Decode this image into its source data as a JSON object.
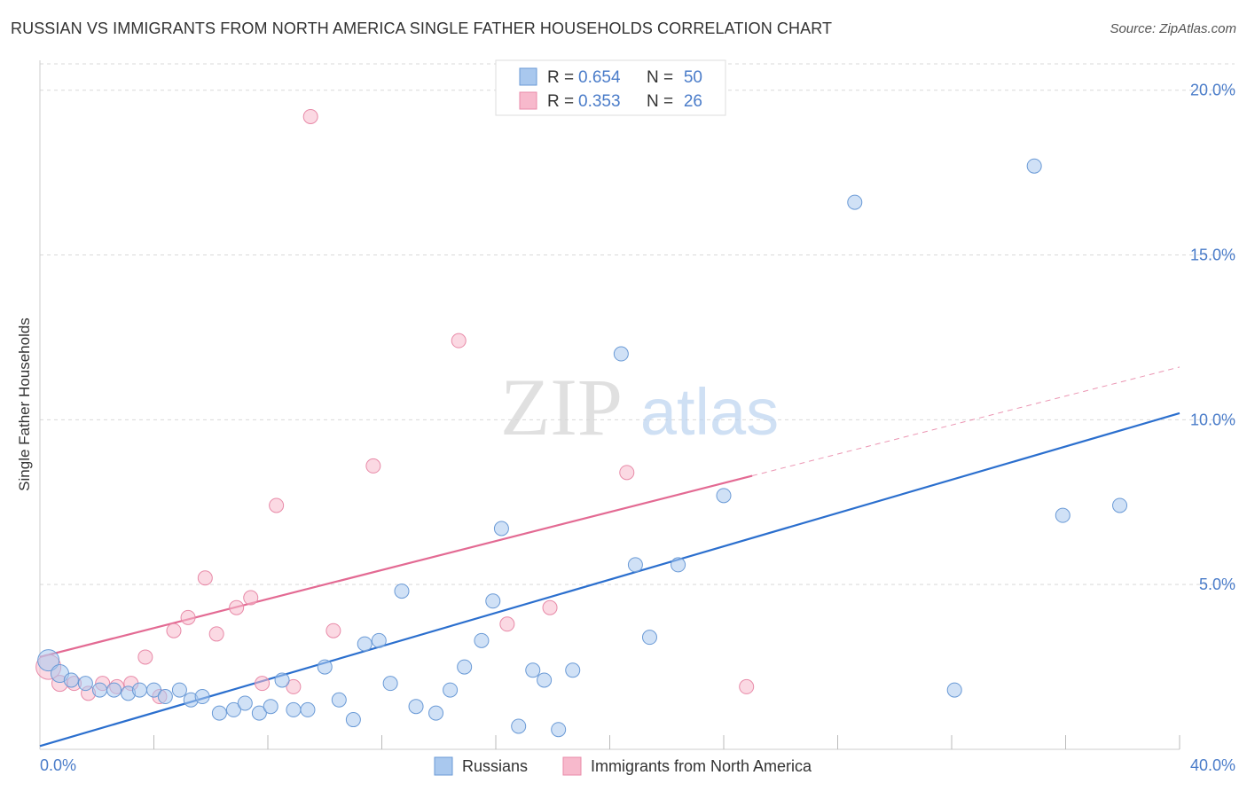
{
  "header": {
    "title": "RUSSIAN VS IMMIGRANTS FROM NORTH AMERICA SINGLE FATHER HOUSEHOLDS CORRELATION CHART",
    "source": "Source: ZipAtlas.com"
  },
  "watermark": {
    "zip": "ZIP",
    "atlas": "atlas"
  },
  "colors": {
    "blue_fill": "#a9c8ee",
    "blue_stroke": "#6a9ad6",
    "blue_line": "#2b6fce",
    "pink_fill": "#f7b9cc",
    "pink_stroke": "#e88aa8",
    "pink_line": "#e36a93",
    "tick_label": "#4a7cc9",
    "grid": "#d9d9d9"
  },
  "chart_data": {
    "type": "scatter",
    "title": "RUSSIAN VS IMMIGRANTS FROM NORTH AMERICA SINGLE FATHER HOUSEHOLDS CORRELATION CHART",
    "xlabel": "",
    "ylabel": "Single Father Households",
    "xlim": [
      0,
      40
    ],
    "ylim": [
      0,
      20.8
    ],
    "x_tick_labels": [
      "0.0%",
      "40.0%"
    ],
    "y_ticks": [
      5,
      10,
      15,
      20
    ],
    "y_tick_labels": [
      "5.0%",
      "10.0%",
      "15.0%",
      "20.0%"
    ],
    "x_minor_ticks": [
      4,
      8,
      12,
      16,
      20,
      24,
      28,
      32,
      36,
      40
    ],
    "grid": true,
    "legend_position": "top-center",
    "legend": [
      {
        "r_label": "R =",
        "r_value": "0.654",
        "n_label": "N =",
        "n_value": "50"
      },
      {
        "r_label": "R =",
        "r_value": "0.353",
        "n_label": "N =",
        "n_value": "26"
      }
    ],
    "series": [
      {
        "name": "Russians",
        "color": "#a9c8ee",
        "trend": {
          "x0": 0,
          "y0": 0.1,
          "x1": 40,
          "y1": 10.2
        },
        "points": [
          [
            0.3,
            2.7,
            12
          ],
          [
            0.7,
            2.3,
            10
          ],
          [
            1.1,
            2.1,
            8
          ],
          [
            1.6,
            2.0,
            8
          ],
          [
            2.1,
            1.8,
            8
          ],
          [
            2.6,
            1.8,
            8
          ],
          [
            3.1,
            1.7,
            8
          ],
          [
            3.5,
            1.8,
            8
          ],
          [
            4.0,
            1.8,
            8
          ],
          [
            4.4,
            1.6,
            8
          ],
          [
            4.9,
            1.8,
            8
          ],
          [
            5.3,
            1.5,
            8
          ],
          [
            5.7,
            1.6,
            8
          ],
          [
            6.3,
            1.1,
            8
          ],
          [
            6.8,
            1.2,
            8
          ],
          [
            7.2,
            1.4,
            8
          ],
          [
            7.7,
            1.1,
            8
          ],
          [
            8.1,
            1.3,
            8
          ],
          [
            8.5,
            2.1,
            8
          ],
          [
            8.9,
            1.2,
            8
          ],
          [
            9.4,
            1.2,
            8
          ],
          [
            10.0,
            2.5,
            8
          ],
          [
            10.5,
            1.5,
            8
          ],
          [
            11.0,
            0.9,
            8
          ],
          [
            11.4,
            3.2,
            8
          ],
          [
            11.9,
            3.3,
            8
          ],
          [
            12.3,
            2.0,
            8
          ],
          [
            12.7,
            4.8,
            8
          ],
          [
            13.2,
            1.3,
            8
          ],
          [
            13.9,
            1.1,
            8
          ],
          [
            14.4,
            1.8,
            8
          ],
          [
            14.9,
            2.5,
            8
          ],
          [
            15.5,
            3.3,
            8
          ],
          [
            15.9,
            4.5,
            8
          ],
          [
            16.2,
            6.7,
            8
          ],
          [
            16.8,
            0.7,
            8
          ],
          [
            17.3,
            2.4,
            8
          ],
          [
            17.7,
            2.1,
            8
          ],
          [
            18.2,
            0.6,
            8
          ],
          [
            18.7,
            2.4,
            8
          ],
          [
            20.4,
            12.0,
            8
          ],
          [
            20.9,
            5.6,
            8
          ],
          [
            21.4,
            3.4,
            8
          ],
          [
            22.4,
            5.6,
            8
          ],
          [
            24.0,
            7.7,
            8
          ],
          [
            28.6,
            16.6,
            8
          ],
          [
            32.1,
            1.8,
            8
          ],
          [
            34.9,
            17.7,
            8
          ],
          [
            35.9,
            7.1,
            8
          ],
          [
            37.9,
            7.4,
            8
          ]
        ]
      },
      {
        "name": "Immigrants from North America",
        "color": "#f7b9cc",
        "trend": {
          "x0": 0,
          "y0": 2.8,
          "x1": 25,
          "y1": 8.3,
          "dash_x1": 40,
          "dash_y1": 11.6
        },
        "points": [
          [
            0.3,
            2.5,
            14
          ],
          [
            0.7,
            2.0,
            9
          ],
          [
            1.2,
            2.0,
            8
          ],
          [
            1.7,
            1.7,
            8
          ],
          [
            2.2,
            2.0,
            8
          ],
          [
            2.7,
            1.9,
            8
          ],
          [
            3.2,
            2.0,
            8
          ],
          [
            3.7,
            2.8,
            8
          ],
          [
            4.2,
            1.6,
            8
          ],
          [
            4.7,
            3.6,
            8
          ],
          [
            5.2,
            4.0,
            8
          ],
          [
            5.8,
            5.2,
            8
          ],
          [
            6.2,
            3.5,
            8
          ],
          [
            6.9,
            4.3,
            8
          ],
          [
            7.4,
            4.6,
            8
          ],
          [
            7.8,
            2.0,
            8
          ],
          [
            8.3,
            7.4,
            8
          ],
          [
            8.9,
            1.9,
            8
          ],
          [
            9.5,
            19.2,
            8
          ],
          [
            10.3,
            3.6,
            8
          ],
          [
            11.7,
            8.6,
            8
          ],
          [
            14.7,
            12.4,
            8
          ],
          [
            16.4,
            3.8,
            8
          ],
          [
            17.9,
            4.3,
            8
          ],
          [
            20.6,
            8.4,
            8
          ],
          [
            24.8,
            1.9,
            8
          ]
        ]
      }
    ]
  }
}
